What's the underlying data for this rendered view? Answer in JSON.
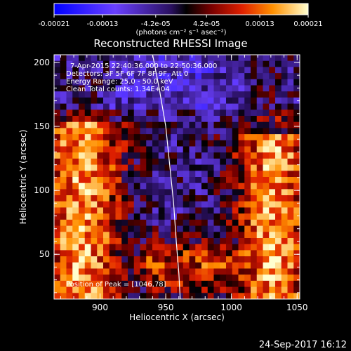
{
  "chart_data": {
    "type": "heatmap",
    "title": "Reconstructed RHESSI Image",
    "xlabel": "Heliocentric X (arcsec)",
    "ylabel": "Heliocentric Y (arcsec)",
    "xlim": [
      865,
      1052
    ],
    "ylim": [
      15,
      206
    ],
    "x_ticks": [
      900,
      950,
      1000,
      1050
    ],
    "y_ticks": [
      50,
      100,
      150,
      200
    ],
    "colorbar": {
      "ticks": [
        "-0.00021",
        "-0.00013",
        "-4.2e-05",
        "4.2e-05",
        "0.00013",
        "0.00021"
      ],
      "unit": "(photons cm⁻² s⁻¹ asec⁻²)",
      "range": [
        -0.00021,
        0.00021
      ]
    },
    "annotations": {
      "time": "7-Apr-2015 22:40:36.000 to 22:50:36.000",
      "detectors": "Detectors: 3F 5F 6F 7F 8F 9F, Att 0",
      "energy": "Energy Range: 25.0 - 50.0 keV",
      "clean": "Clean     Total counts: 1.34E+04",
      "peak": "Position of Peak = [1046,78]"
    },
    "limb_curve": [
      [
        940,
        206
      ],
      [
        945,
        180
      ],
      [
        950,
        150
      ],
      [
        953,
        120
      ],
      [
        956,
        90
      ],
      [
        958,
        60
      ],
      [
        960,
        35
      ],
      [
        961,
        15
      ]
    ],
    "grid": false,
    "legend": "none"
  },
  "footer": {
    "date": "24-Sep-2017 16:12"
  }
}
